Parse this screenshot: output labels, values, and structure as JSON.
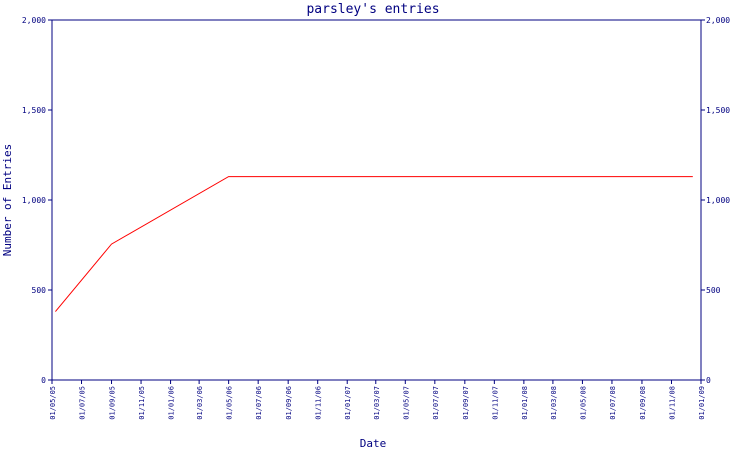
{
  "chart_data": {
    "type": "line",
    "title": "parsley's entries",
    "xlabel": "Date",
    "ylabel": "Number of Entries",
    "ylim": [
      0,
      2000
    ],
    "y_ticks": [
      0,
      500,
      1000,
      1500,
      2000
    ],
    "y_tick_labels": [
      "0",
      "500",
      "1,000",
      "1,500",
      "2,000"
    ],
    "y_axis_mirrored_right": true,
    "x_range": [
      "2005-05-01",
      "2009-01-01"
    ],
    "x_ticks": [
      "2005-05-01",
      "2005-07-01",
      "2005-09-01",
      "2005-11-01",
      "2006-01-01",
      "2006-03-01",
      "2006-05-01",
      "2006-07-01",
      "2006-09-01",
      "2006-11-01",
      "2007-01-01",
      "2007-03-01",
      "2007-05-01",
      "2007-07-01",
      "2007-09-01",
      "2007-11-01",
      "2008-01-01",
      "2008-03-01",
      "2008-05-01",
      "2008-07-01",
      "2008-09-01",
      "2008-11-01",
      "2009-01-01"
    ],
    "x_tick_labels": [
      "01/05/05",
      "01/07/05",
      "01/09/05",
      "01/11/05",
      "01/01/06",
      "01/03/06",
      "01/05/06",
      "01/07/06",
      "01/09/06",
      "01/11/06",
      "01/01/07",
      "01/03/07",
      "01/05/07",
      "01/07/07",
      "01/09/07",
      "01/11/07",
      "01/01/08",
      "01/03/08",
      "01/05/08",
      "01/07/08",
      "01/09/08",
      "01/11/08",
      "01/01/09"
    ],
    "grid": false,
    "series": [
      {
        "color": "#ff0000",
        "points": [
          {
            "x": "2005-05-08",
            "y": 380
          },
          {
            "x": "2005-09-01",
            "y": 755
          },
          {
            "x": "2006-05-01",
            "y": 1130
          },
          {
            "x": "2008-12-15",
            "y": 1130
          }
        ]
      }
    ],
    "colors": {
      "axis": "#000080",
      "text": "#000080",
      "line": "#ff0000",
      "background": "#ffffff"
    }
  }
}
